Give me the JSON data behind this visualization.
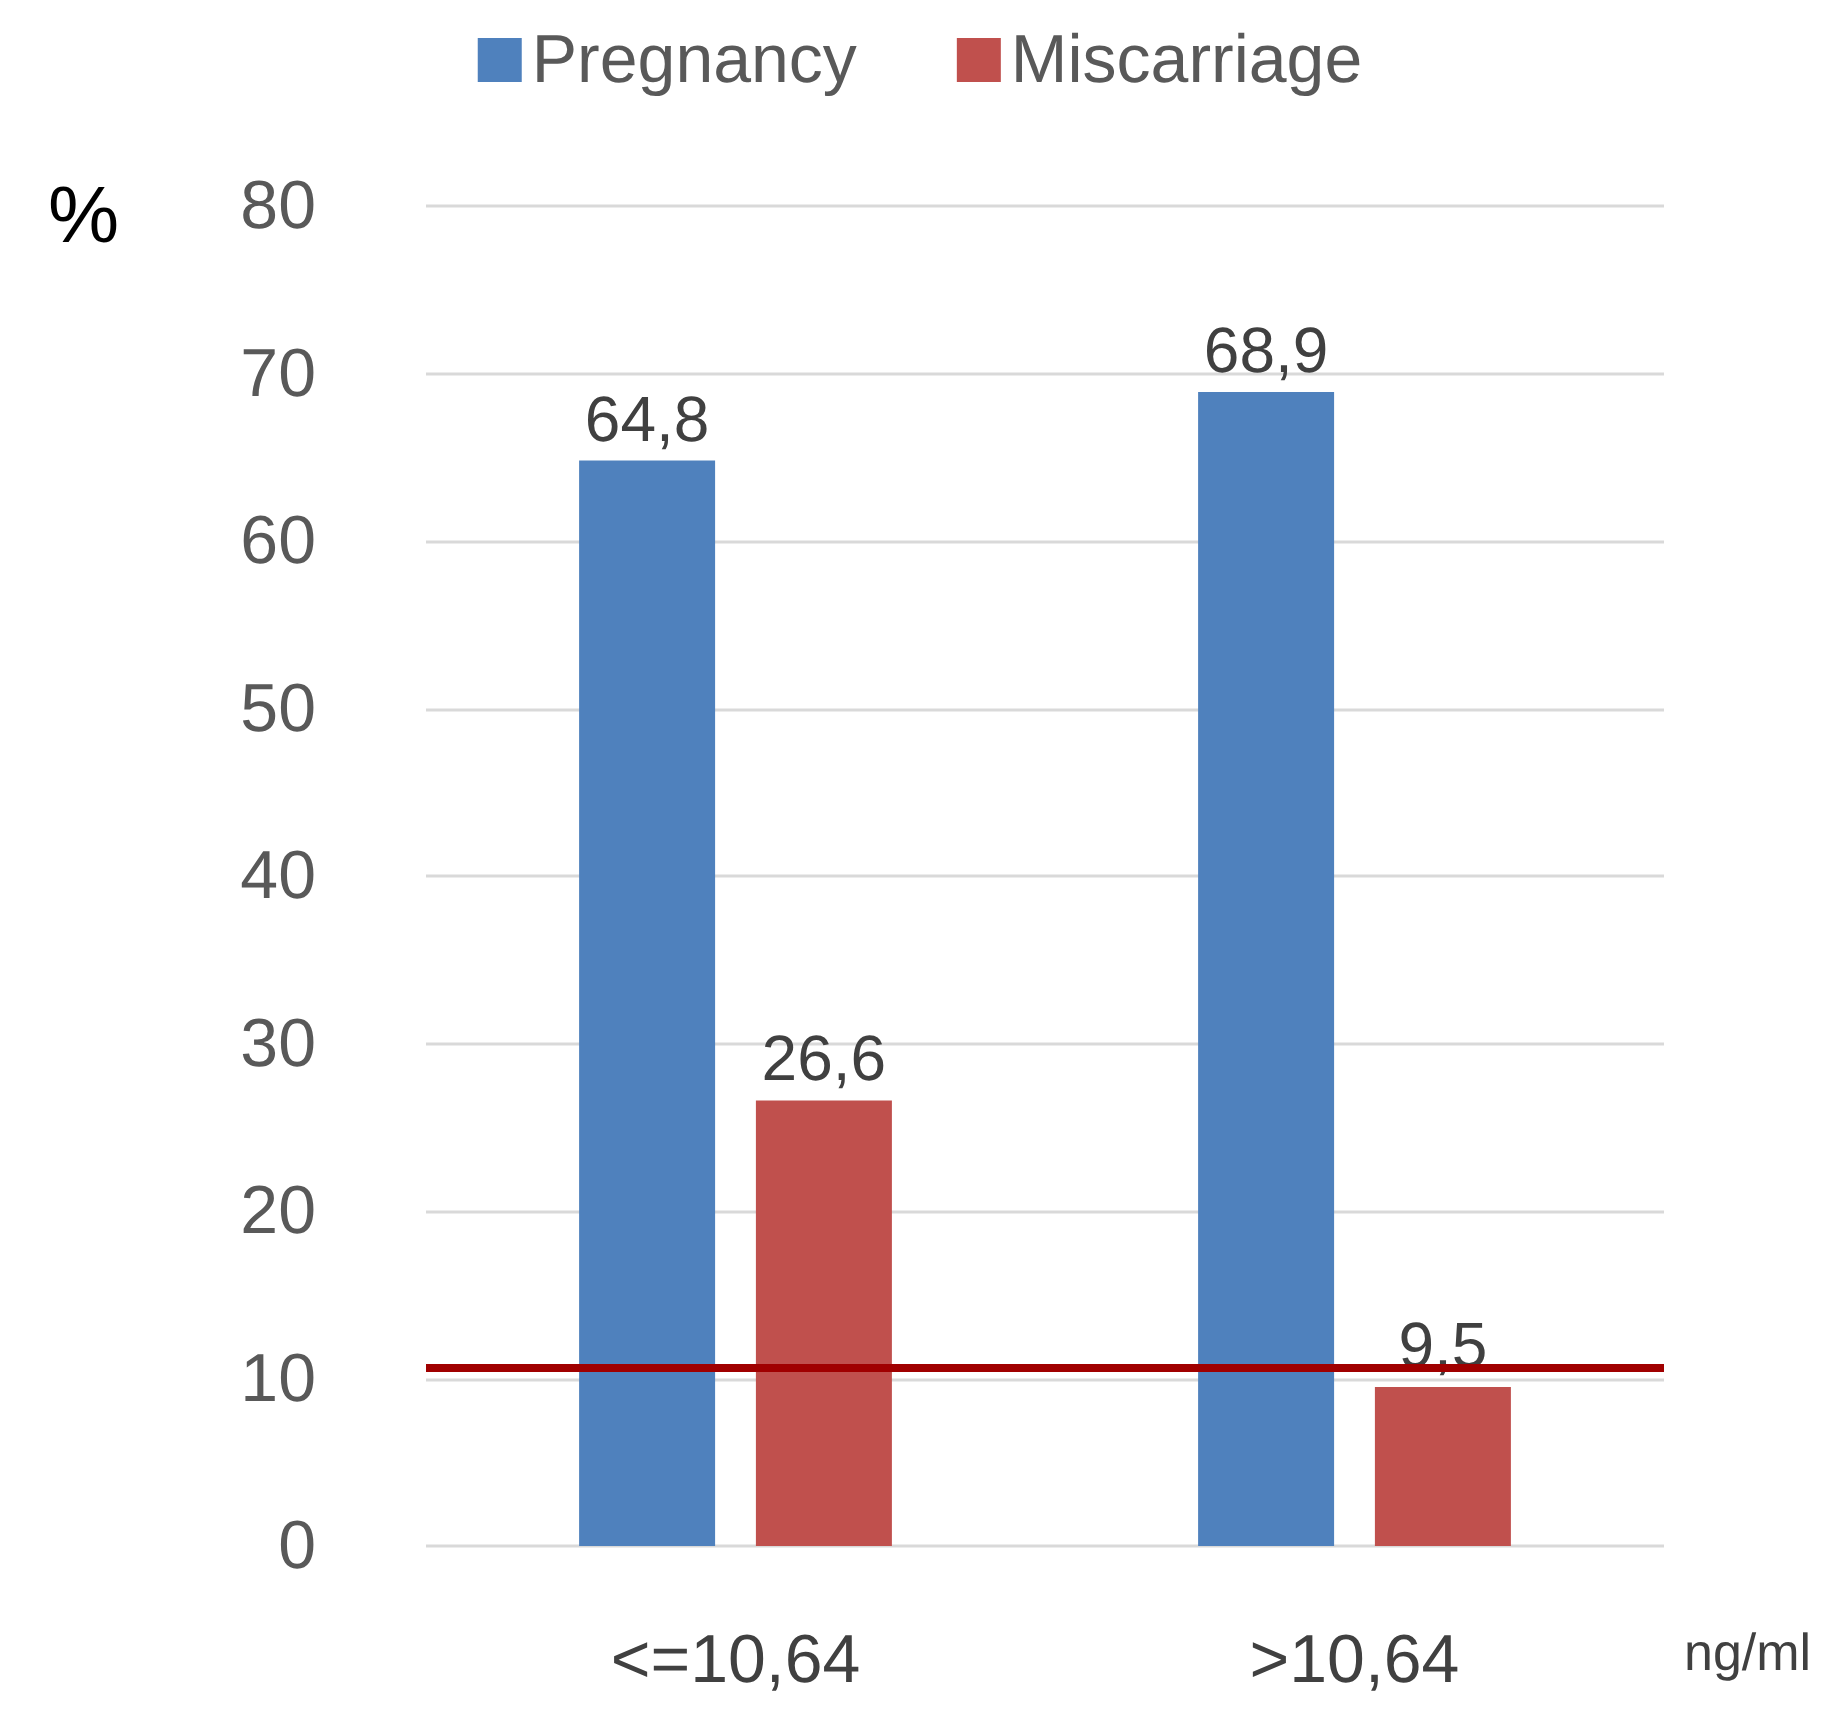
{
  "chart_data": {
    "type": "bar",
    "ylabel": "%",
    "xlabel": "ng/ml",
    "categories": [
      "<=10,64",
      ">10,64"
    ],
    "series": [
      {
        "name": "Pregnancy",
        "color": "#4f81bd",
        "values": [
          64.8,
          68.9
        ],
        "value_labels": [
          "64,8",
          "68,9"
        ]
      },
      {
        "name": "Miscarriage",
        "color": "#c0504d",
        "values": [
          26.6,
          9.5
        ],
        "value_labels": [
          "26,6",
          "9,5"
        ]
      }
    ],
    "ylim": [
      0,
      80
    ],
    "yticks": [
      0,
      10,
      20,
      30,
      40,
      50,
      60,
      70,
      80
    ],
    "grid": "y",
    "legend": "top",
    "ref_lines": [
      {
        "axis": "y",
        "value": 10.7,
        "label": null,
        "color": "#a00000",
        "line_style": "solid"
      }
    ]
  }
}
